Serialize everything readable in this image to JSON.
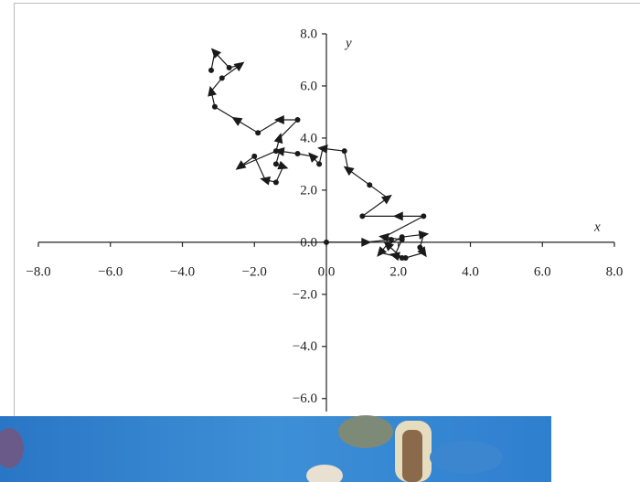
{
  "chart_data": {
    "type": "line",
    "x_label": "x",
    "y_label": "y",
    "x": [
      0.0,
      1.1,
      1.8,
      1.5,
      2.1,
      1.7,
      2.1,
      2.7,
      2.6,
      2.7,
      2.2,
      1.9,
      2.1,
      1.6,
      2.7,
      2.0,
      1.0,
      1.7,
      1.2,
      0.6,
      0.5,
      -0.1,
      -0.2,
      -0.4,
      -0.8,
      -1.3,
      -1.4,
      -1.2,
      -1.4,
      -1.7,
      -2.0,
      -2.4,
      -1.4,
      -1.3,
      -0.8,
      -1.3,
      -1.9,
      -2.5,
      -3.1,
      -3.2,
      -2.9,
      -2.4,
      -2.7,
      -3.1,
      -3.2
    ],
    "values": [
      0.0,
      0.0,
      0.1,
      -0.4,
      -0.6,
      -0.1,
      0.2,
      0.3,
      -0.2,
      -0.4,
      -0.6,
      -0.5,
      0.1,
      0.2,
      1.0,
      1.0,
      1.0,
      1.7,
      2.2,
      2.8,
      3.5,
      3.6,
      3.0,
      3.3,
      3.4,
      3.5,
      3.0,
      2.9,
      2.3,
      2.4,
      3.3,
      2.9,
      3.5,
      4.0,
      4.7,
      4.7,
      4.2,
      4.7,
      5.2,
      5.8,
      6.3,
      6.8,
      6.7,
      7.3,
      6.6
    ],
    "color": "#1a1a1a",
    "xlim": [
      -8,
      8
    ],
    "ylim": [
      -6.5,
      8
    ],
    "xticks": [
      {
        "value": -8,
        "label": "−8.0"
      },
      {
        "value": -6,
        "label": "−6.0"
      },
      {
        "value": -4,
        "label": "−4.0"
      },
      {
        "value": -2,
        "label": "−2.0"
      },
      {
        "value": 0,
        "label": "0.0"
      },
      {
        "value": 2,
        "label": "2.0"
      },
      {
        "value": 4,
        "label": "4.0"
      },
      {
        "value": 6,
        "label": "6.0"
      },
      {
        "value": 8,
        "label": "8.0"
      }
    ],
    "yticks": [
      {
        "value": -6,
        "label": "−6.0"
      },
      {
        "value": -4,
        "label": "−4.0"
      },
      {
        "value": -2,
        "label": "−2.0"
      },
      {
        "value": 0,
        "label": "0.0"
      },
      {
        "value": 2,
        "label": "2.0"
      },
      {
        "value": 4,
        "label": "4.0"
      },
      {
        "value": 6,
        "label": "6.0"
      },
      {
        "value": 8,
        "label": "8.0"
      }
    ]
  }
}
